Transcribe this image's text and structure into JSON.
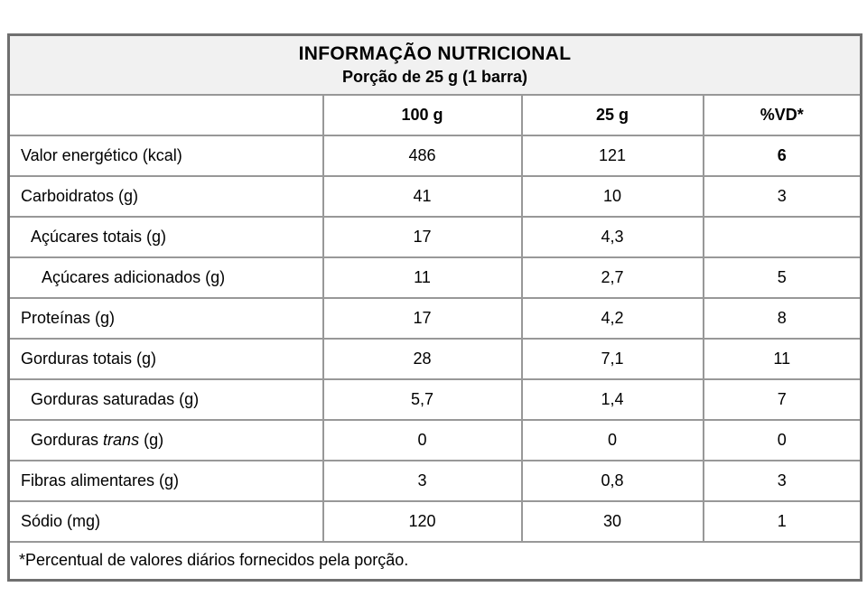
{
  "header": {
    "title": "INFORMAÇÃO NUTRICIONAL",
    "subtitle": "Porção de 25 g (1 barra)"
  },
  "columns": [
    "",
    "100 g",
    "25 g",
    "%VD*"
  ],
  "rows": [
    {
      "label_parts": [
        {
          "text": "Valor energético (kcal)",
          "italic": false
        }
      ],
      "indent": 0,
      "values": [
        "486",
        "121",
        "6"
      ],
      "vd_bold": true
    },
    {
      "label_parts": [
        {
          "text": "Carboidratos (g)",
          "italic": false
        }
      ],
      "indent": 0,
      "values": [
        "41",
        "10",
        "3"
      ],
      "vd_bold": false
    },
    {
      "label_parts": [
        {
          "text": "Açúcares totais (g)",
          "italic": false
        }
      ],
      "indent": 1,
      "values": [
        "17",
        "4,3",
        ""
      ],
      "vd_bold": false
    },
    {
      "label_parts": [
        {
          "text": "Açúcares adicionados (g)",
          "italic": false
        }
      ],
      "indent": 2,
      "values": [
        "11",
        "2,7",
        "5"
      ],
      "vd_bold": false
    },
    {
      "label_parts": [
        {
          "text": "Proteínas (g)",
          "italic": false
        }
      ],
      "indent": 0,
      "values": [
        "17",
        "4,2",
        "8"
      ],
      "vd_bold": false
    },
    {
      "label_parts": [
        {
          "text": "Gorduras totais (g)",
          "italic": false
        }
      ],
      "indent": 0,
      "values": [
        "28",
        "7,1",
        "11"
      ],
      "vd_bold": false
    },
    {
      "label_parts": [
        {
          "text": "Gorduras saturadas (g)",
          "italic": false
        }
      ],
      "indent": 1,
      "values": [
        "5,7",
        "1,4",
        "7"
      ],
      "vd_bold": false
    },
    {
      "label_parts": [
        {
          "text": "Gorduras ",
          "italic": false
        },
        {
          "text": "trans",
          "italic": true
        },
        {
          "text": " (g)",
          "italic": false
        }
      ],
      "indent": 1,
      "values": [
        "0",
        "0",
        "0"
      ],
      "vd_bold": false
    },
    {
      "label_parts": [
        {
          "text": "Fibras alimentares (g)",
          "italic": false
        }
      ],
      "indent": 0,
      "values": [
        "3",
        "0,8",
        "3"
      ],
      "vd_bold": false
    },
    {
      "label_parts": [
        {
          "text": "Sódio (mg)",
          "italic": false
        }
      ],
      "indent": 0,
      "values": [
        "120",
        "30",
        "1"
      ],
      "vd_bold": false
    }
  ],
  "footnote": "*Percentual de valores diários fornecidos pela porção.",
  "colors": {
    "border_outer": "#6f6f6f",
    "border_inner": "#989898",
    "title_row_bg": "#f1f1f1",
    "text": "#000000",
    "page_bg": "#ffffff"
  }
}
